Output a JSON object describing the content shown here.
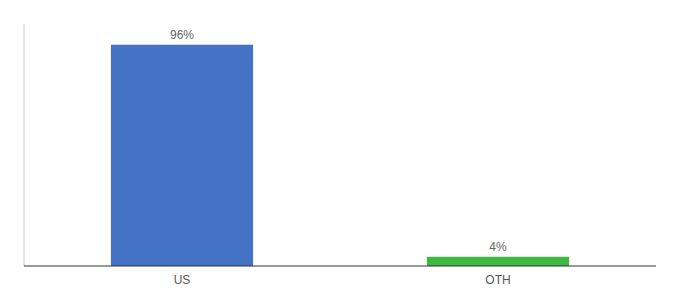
{
  "chart_data": {
    "type": "bar",
    "categories": [
      "US",
      "OTH"
    ],
    "values": [
      96,
      4
    ],
    "value_labels": [
      "96%",
      "4%"
    ],
    "colors": [
      "#4472c4",
      "#3cb843"
    ],
    "ylim": [
      0,
      105
    ],
    "data_labels": true,
    "tick_labels": "x",
    "grid": false
  }
}
